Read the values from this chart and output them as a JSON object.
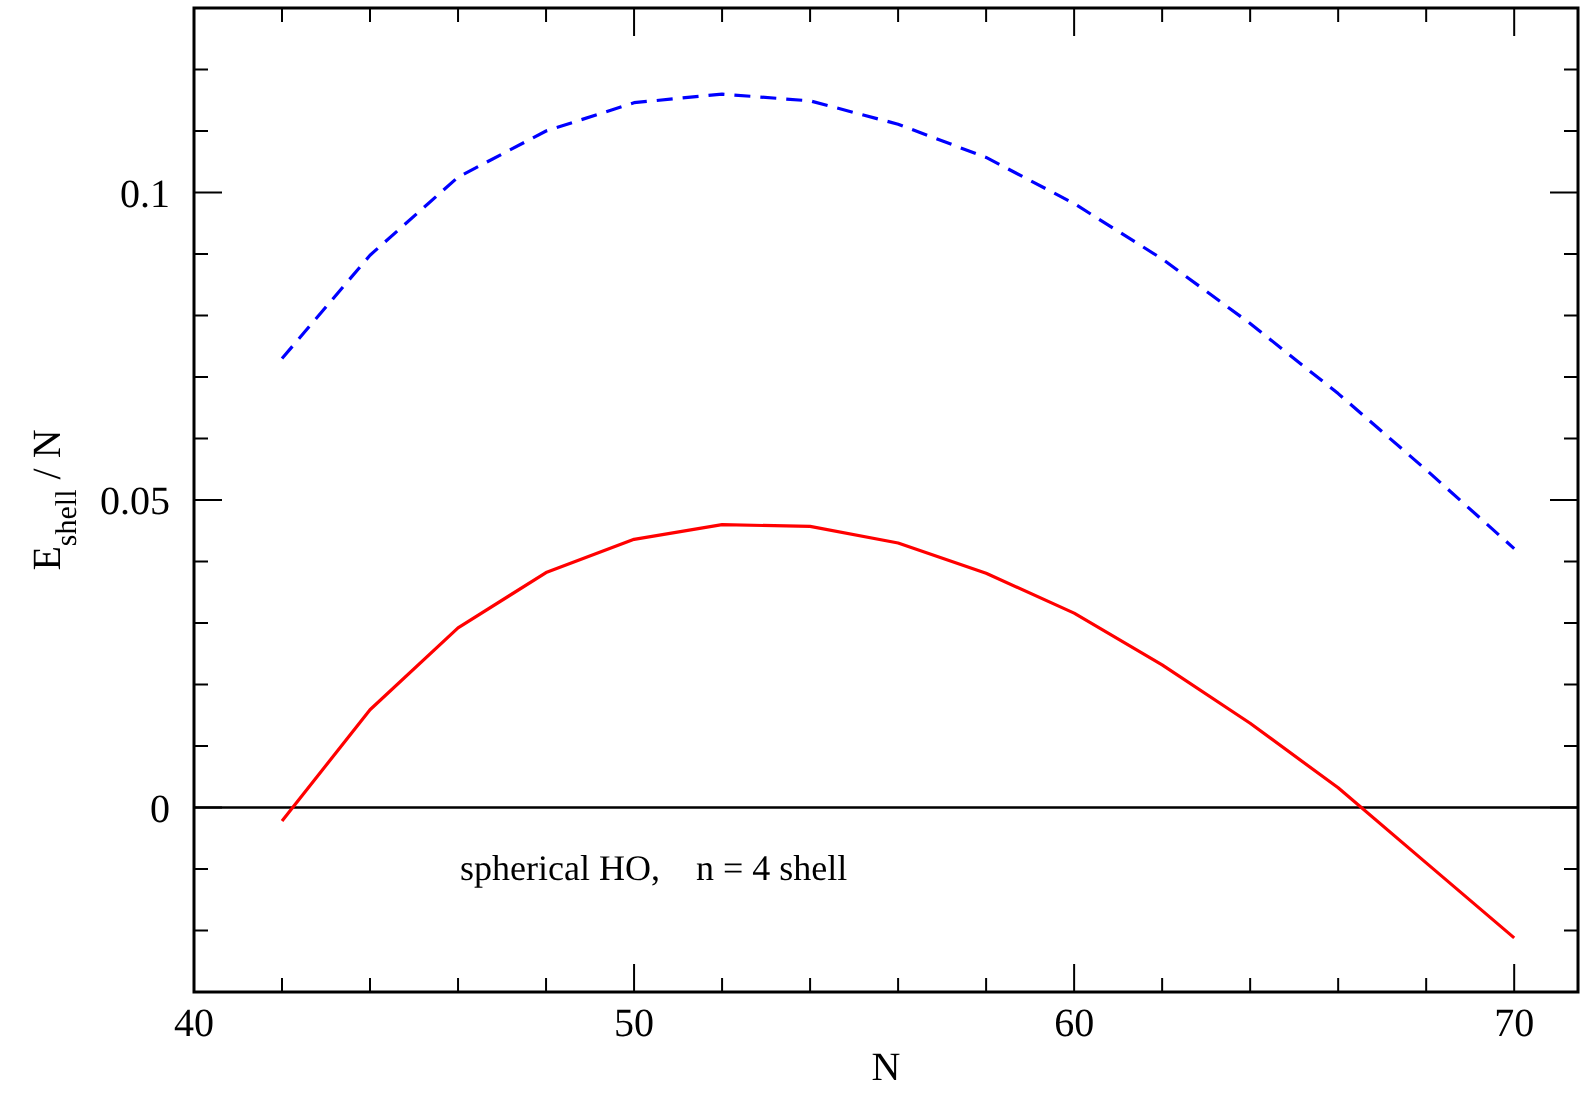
{
  "chart_data": {
    "type": "line",
    "xlabel": "N",
    "ylabel": "E$_{shell}$ / N",
    "xlim": [
      40,
      71.45
    ],
    "ylim": [
      -0.03,
      0.13
    ],
    "xticks": [
      40,
      {
        "value": 42,
        "label": null
      },
      {
        "value": 44,
        "label": null
      },
      {
        "value": 46,
        "label": null
      },
      {
        "value": 48,
        "label": null
      },
      50,
      {
        "value": 52,
        "label": null
      },
      {
        "value": 54,
        "label": null
      },
      {
        "value": 56,
        "label": null
      },
      {
        "value": 58,
        "label": null
      },
      60,
      {
        "value": 62,
        "label": null
      },
      {
        "value": 64,
        "label": null
      },
      {
        "value": 66,
        "label": null
      },
      {
        "value": 68,
        "label": null
      },
      70
    ],
    "yticks": [
      {
        "value": -0.02,
        "label": null
      },
      {
        "value": -0.01,
        "label": null
      },
      0,
      {
        "value": 0.01,
        "label": null
      },
      {
        "value": 0.02,
        "label": null
      },
      {
        "value": 0.03,
        "label": null
      },
      {
        "value": 0.04,
        "label": null
      },
      0.05,
      {
        "value": 0.06,
        "label": null
      },
      {
        "value": 0.07,
        "label": null
      },
      {
        "value": 0.08,
        "label": null
      },
      {
        "value": 0.09,
        "label": null
      },
      0.1,
      {
        "value": 0.11,
        "label": null
      },
      {
        "value": 0.12,
        "label": null
      }
    ],
    "x": [
      42,
      44,
      46,
      48,
      50,
      52,
      54,
      56,
      58,
      60,
      62,
      64,
      66,
      68,
      70
    ],
    "series": [
      {
        "color": "#0000ff",
        "line_style": "dashed",
        "values": [
          0.073,
          0.0898,
          0.1025,
          0.11,
          0.1146,
          0.116,
          0.1149,
          0.1111,
          0.1057,
          0.0982,
          0.0892,
          0.0787,
          0.0673,
          0.0549,
          0.0421
        ]
      },
      {
        "color": "#ff0000",
        "line_style": "solid",
        "values": [
          -0.0022,
          0.0159,
          0.0292,
          0.0382,
          0.0436,
          0.046,
          0.0457,
          0.043,
          0.0381,
          0.0316,
          0.0232,
          0.0137,
          0.0032,
          -0.009,
          -0.0212
        ]
      }
    ],
    "ref_lines": [
      {
        "axis": "y",
        "value": 0,
        "color": "#000000"
      }
    ],
    "annotations": [
      "spherical HO,    n = 4 shell"
    ],
    "grid": false,
    "marker": "none"
  }
}
